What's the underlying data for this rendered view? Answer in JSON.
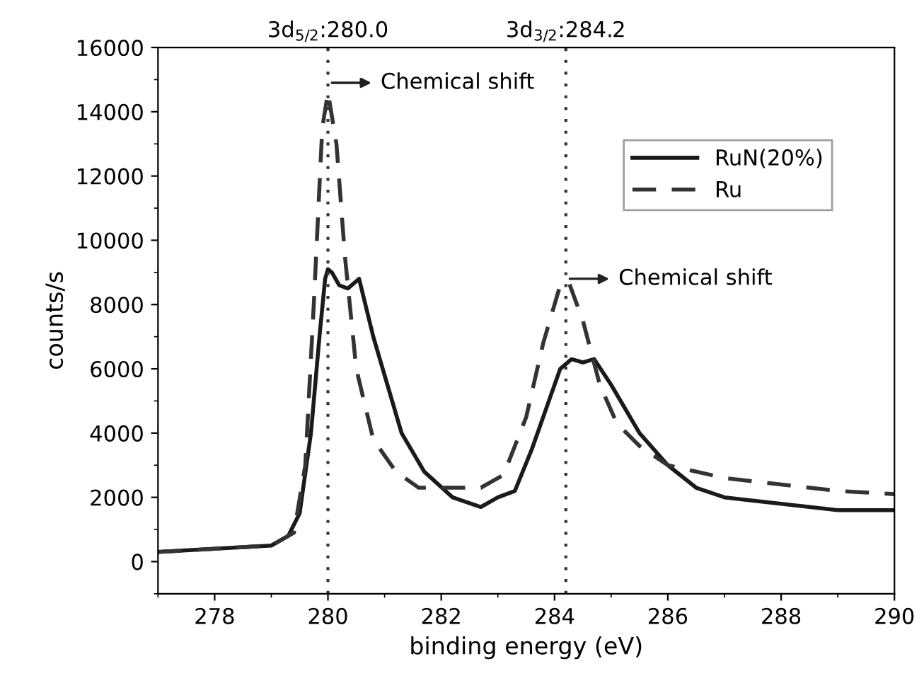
{
  "chart_data": {
    "type": "line",
    "xlabel": "binding energy (eV)",
    "ylabel": "counts/s",
    "xlim": [
      277,
      290
    ],
    "xticks": [
      278,
      280,
      282,
      284,
      286,
      288,
      290
    ],
    "ylim": [
      -1000,
      16000
    ],
    "yticks": [
      0,
      2000,
      4000,
      6000,
      8000,
      10000,
      12000,
      14000,
      16000
    ],
    "grid": false,
    "legend": "top right",
    "marker": "none",
    "series": [
      {
        "name": "RuN(20%)",
        "color": "#1a1a1a",
        "line_style": "solid",
        "x": [
          277,
          278,
          279,
          279.3,
          279.5,
          279.7,
          279.85,
          279.95,
          280,
          280.07,
          280.2,
          280.35,
          280.55,
          280.8,
          281,
          281.3,
          281.7,
          282.2,
          282.7,
          283,
          283.3,
          283.6,
          283.9,
          284.1,
          284.3,
          284.5,
          284.7,
          285,
          285.5,
          286,
          286.5,
          287,
          288,
          289,
          290
        ],
        "values": [
          300,
          400,
          500,
          800,
          1500,
          4000,
          7000,
          8800,
          9100,
          9000,
          8600,
          8500,
          8800,
          7000,
          5800,
          4000,
          2800,
          2000,
          1700,
          2000,
          2200,
          3500,
          5000,
          6000,
          6300,
          6200,
          6300,
          5500,
          4000,
          3000,
          2300,
          2000,
          1800,
          1600,
          1600
        ]
      },
      {
        "name": "Ru",
        "color": "#333333",
        "line_style": "dashed",
        "x": [
          277,
          279,
          279.4,
          279.6,
          279.75,
          279.9,
          280,
          280.15,
          280.3,
          280.5,
          280.8,
          281.2,
          281.6,
          282,
          282.7,
          283.1,
          283.5,
          283.8,
          284.1,
          284.25,
          284.5,
          284.8,
          285.1,
          285.5,
          286,
          287,
          288,
          289,
          290
        ],
        "values": [
          300,
          500,
          900,
          3000,
          8000,
          13500,
          14600,
          13000,
          9500,
          6000,
          3800,
          2800,
          2300,
          2300,
          2300,
          2700,
          4500,
          6800,
          8600,
          8700,
          7500,
          5500,
          4300,
          3600,
          3000,
          2600,
          2400,
          2200,
          2100
        ]
      }
    ],
    "ref_lines": [
      {
        "axis": "x",
        "value": 280.0,
        "label": "3d$_{5/2}$:280.0",
        "line_style": "dotted",
        "color": "#333333"
      },
      {
        "axis": "x",
        "value": 284.2,
        "label": "3d$_{3/2}$:284.2",
        "line_style": "dotted",
        "color": "#333333"
      }
    ],
    "annotations": [
      {
        "text": "Chemical shift",
        "x": 280.0,
        "y": 14900
      },
      {
        "text": "Chemical shift",
        "x": 284.2,
        "y": 8800
      }
    ]
  }
}
